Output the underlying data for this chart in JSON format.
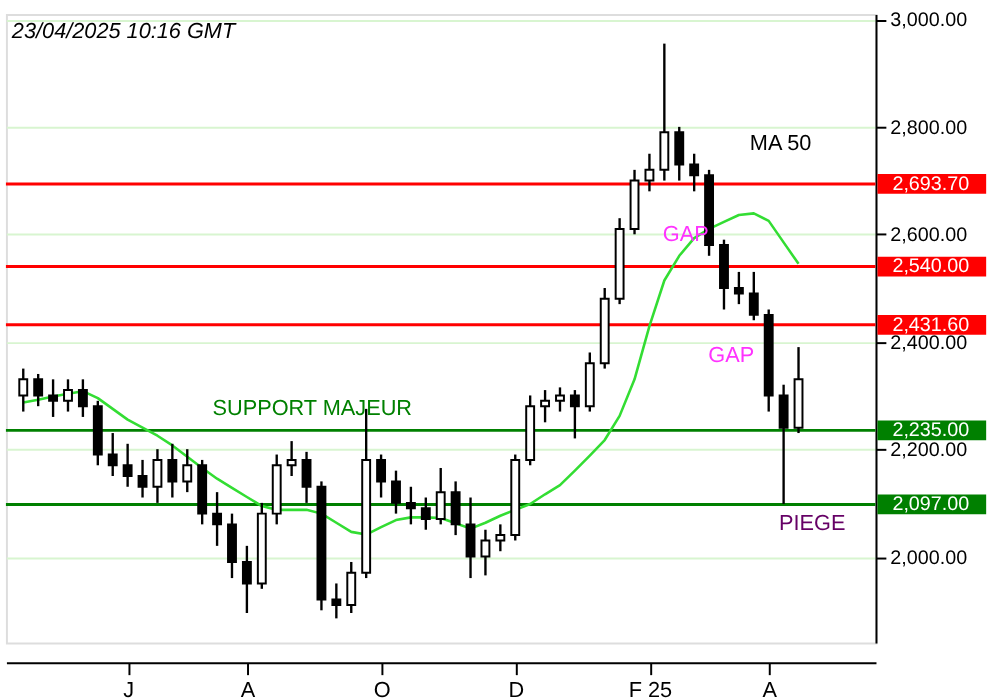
{
  "chart_data": {
    "type": "candlestick",
    "color": "#000000",
    "categories": [
      null,
      null,
      null,
      null,
      null,
      null,
      null,
      "J",
      null,
      null,
      null,
      null,
      null,
      null,
      null,
      "A",
      null,
      null,
      null,
      null,
      null,
      null,
      null,
      null,
      "O",
      null,
      null,
      null,
      null,
      null,
      null,
      null,
      null,
      "D",
      null,
      null,
      null,
      null,
      null,
      null,
      null,
      null,
      "F 25",
      null,
      null,
      null,
      null,
      null,
      null,
      null,
      "A",
      null,
      null
    ],
    "ohlc": [
      [
        2300,
        2350,
        2270,
        2330
      ],
      [
        2330,
        2340,
        2280,
        2300
      ],
      [
        2300,
        2330,
        2260,
        2290
      ],
      [
        2290,
        2330,
        2270,
        2310
      ],
      [
        2310,
        2330,
        2260,
        2280
      ],
      [
        2280,
        2290,
        2170,
        2190
      ],
      [
        2190,
        2230,
        2150,
        2170
      ],
      [
        2170,
        2210,
        2130,
        2150
      ],
      [
        2150,
        2180,
        2110,
        2130
      ],
      [
        2130,
        2200,
        2100,
        2180
      ],
      [
        2180,
        2210,
        2110,
        2140
      ],
      [
        2140,
        2200,
        2120,
        2170
      ],
      [
        2170,
        2180,
        2060,
        2080
      ],
      [
        2080,
        2120,
        2020,
        2060
      ],
      [
        2060,
        2080,
        1960,
        1990
      ],
      [
        1990,
        2020,
        1895,
        1950
      ],
      [
        1950,
        2100,
        1940,
        2080
      ],
      [
        2080,
        2190,
        2060,
        2170
      ],
      [
        2170,
        2215,
        2150,
        2180
      ],
      [
        2180,
        2195,
        2100,
        2130
      ],
      [
        2130,
        2140,
        1900,
        1920
      ],
      [
        1920,
        1950,
        1885,
        1910
      ],
      [
        1910,
        1990,
        1895,
        1970
      ],
      [
        1970,
        2275,
        1960,
        2180
      ],
      [
        2180,
        2190,
        2110,
        2140
      ],
      [
        2140,
        2160,
        2080,
        2100
      ],
      [
        2100,
        2130,
        2060,
        2090
      ],
      [
        2090,
        2110,
        2050,
        2070
      ],
      [
        2070,
        2165,
        2060,
        2120
      ],
      [
        2120,
        2140,
        2040,
        2060
      ],
      [
        2060,
        2110,
        1960,
        2000
      ],
      [
        2000,
        2050,
        1965,
        2030
      ],
      [
        2030,
        2060,
        2010,
        2040
      ],
      [
        2040,
        2190,
        2030,
        2180
      ],
      [
        2180,
        2300,
        2170,
        2280
      ],
      [
        2280,
        2310,
        2250,
        2290
      ],
      [
        2290,
        2315,
        2270,
        2300
      ],
      [
        2300,
        2310,
        2220,
        2280
      ],
      [
        2280,
        2380,
        2270,
        2360
      ],
      [
        2360,
        2500,
        2350,
        2480
      ],
      [
        2480,
        2630,
        2470,
        2610
      ],
      [
        2610,
        2720,
        2600,
        2700
      ],
      [
        2700,
        2750,
        2680,
        2720
      ],
      [
        2720,
        2955,
        2700,
        2790
      ],
      [
        2790,
        2800,
        2700,
        2730
      ],
      [
        2730,
        2750,
        2680,
        2710
      ],
      [
        2710,
        2720,
        2560,
        2580
      ],
      [
        2580,
        2590,
        2460,
        2500
      ],
      [
        2500,
        2530,
        2470,
        2490
      ],
      [
        2490,
        2530,
        2440,
        2450
      ],
      [
        2450,
        2460,
        2270,
        2300
      ],
      [
        2300,
        2320,
        2098,
        2240
      ],
      [
        2240,
        2390,
        2230,
        2330
      ]
    ],
    "series": [
      {
        "type": "line",
        "color": "#33dd33",
        "values": [
          2287,
          2292,
          2298,
          2303,
          2308,
          2295,
          2275,
          2255,
          2240,
          2225,
          2207,
          2186,
          2165,
          2145,
          2128,
          2111,
          2094,
          2087,
          2087,
          2087,
          2080,
          2063,
          2046,
          2041,
          2055,
          2068,
          2073,
          2073,
          2072,
          2062,
          2052,
          2063,
          2076,
          2087,
          2098,
          2116,
          2133,
          2160,
          2188,
          2217,
          2262,
          2330,
          2429,
          2514,
          2560,
          2593,
          2610,
          2623,
          2636,
          2639,
          2625,
          2585,
          2545
        ]
      }
    ],
    "ylim": [
      1840,
      3010
    ],
    "yticks": [
      {
        "value": 2000,
        "label": "2,000.00"
      },
      {
        "value": 2200,
        "label": "2,200.00"
      },
      {
        "value": 2400,
        "label": "2,400.00"
      },
      {
        "value": 2600,
        "label": "2,600.00"
      },
      {
        "value": 2800,
        "label": "2,800.00"
      },
      {
        "value": 3000,
        "label": "3,000.00"
      }
    ],
    "grid": "y",
    "ref_lines": [
      {
        "axis": "y",
        "value": 2693.7,
        "label": "2,693.70",
        "color": "#ff0000"
      },
      {
        "axis": "y",
        "value": 2540,
        "label": "2,540.00",
        "color": "#ff0000"
      },
      {
        "axis": "y",
        "value": 2431.6,
        "label": "2,431.60",
        "color": "#ff0000"
      },
      {
        "axis": "y",
        "value": 2235,
        "label": "2,235.00",
        "color": "#008000"
      },
      {
        "axis": "y",
        "value": 2097,
        "label": "2,097.00",
        "color": "#008000"
      }
    ],
    "annotations": [
      "23/04/2025 10:16 GMT",
      "MA 50",
      "GAP",
      "GAP",
      "SUPPORT MAJEUR",
      "PIEGE"
    ]
  }
}
